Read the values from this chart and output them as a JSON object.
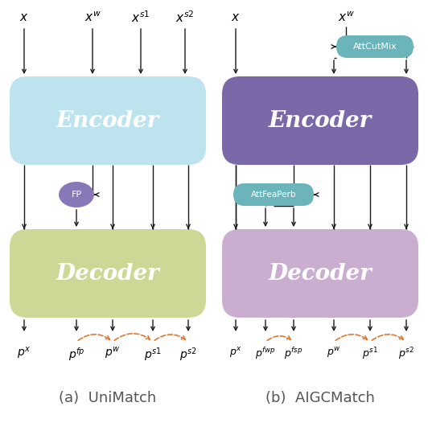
{
  "fig_width": 5.32,
  "fig_height": 5.26,
  "dpi": 100,
  "bg_color": "#ffffff",
  "left_encoder_color": "#bde3ee",
  "left_decoder_color": "#cdd896",
  "right_encoder_color": "#7b68a8",
  "right_decoder_color": "#c9aed0",
  "fp_circle_color": "#8878b8",
  "attfea_box_color": "#6bb5ba",
  "attcut_box_color": "#6bb5ba",
  "arrow_color": "#1a1a1a",
  "dashed_arrow_color": "#e07830",
  "caption_left": "(a)  UniMatch",
  "caption_right": "(b)  AIGCMatch",
  "encoder_label": "Encoder",
  "decoder_label": "Decoder",
  "fp_label": "FP",
  "attfea_label": "AttFeaPerb",
  "attcut_label": "AttCutMix"
}
